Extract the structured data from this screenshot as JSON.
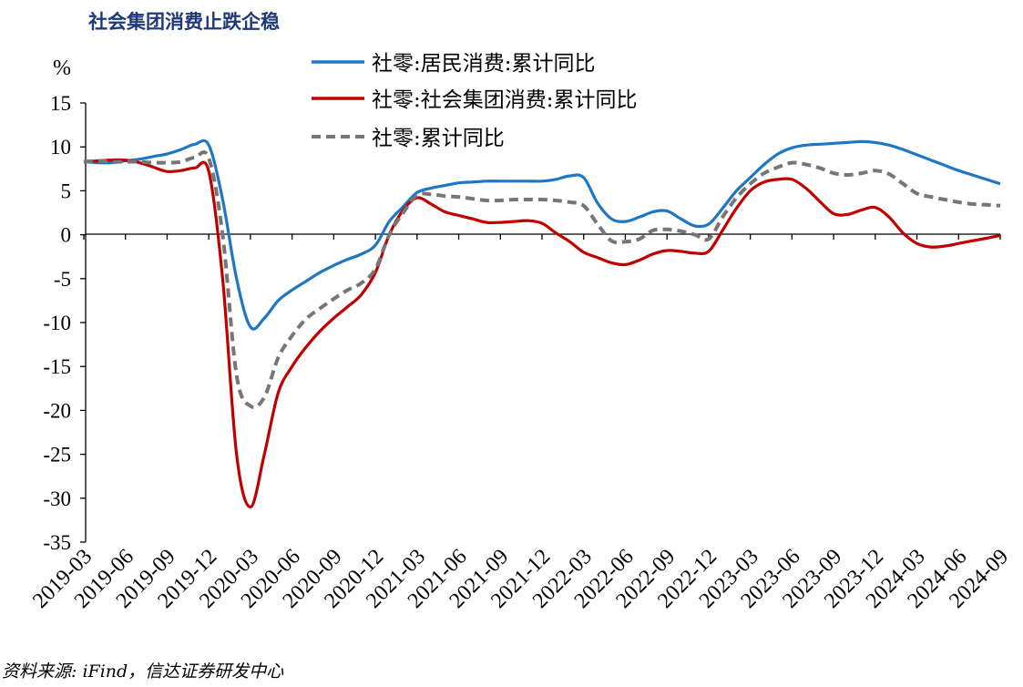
{
  "page": {
    "title": "社会集团消费止跌企稳",
    "source": "资料来源: iFind，信达证券研发中心"
  },
  "chart_data": {
    "type": "line",
    "title": "社会集团消费止跌企稳",
    "ylabel": "%",
    "xlabel": "",
    "ylim": [
      -35,
      15
    ],
    "yticks": [
      15,
      10,
      5,
      0,
      -5,
      -10,
      -15,
      -20,
      -25,
      -30,
      -35
    ],
    "ytick_labels": [
      "15",
      "10",
      "5",
      "0",
      "-5",
      "-10",
      "-15",
      "-20",
      "-25",
      "-30",
      "-35"
    ],
    "x": [
      "2019-03",
      "2019-04",
      "2019-05",
      "2019-06",
      "2019-07",
      "2019-08",
      "2019-09",
      "2019-10",
      "2019-11",
      "2019-12",
      "2020-01",
      "2020-02",
      "2020-03",
      "2020-04",
      "2020-05",
      "2020-06",
      "2020-07",
      "2020-08",
      "2020-09",
      "2020-10",
      "2020-11",
      "2020-12",
      "2021-01",
      "2021-02",
      "2021-03",
      "2021-04",
      "2021-05",
      "2021-06",
      "2021-07",
      "2021-08",
      "2021-09",
      "2021-10",
      "2021-11",
      "2021-12",
      "2022-01",
      "2022-02",
      "2022-03",
      "2022-04",
      "2022-05",
      "2022-06",
      "2022-07",
      "2022-08",
      "2022-09",
      "2022-10",
      "2022-11",
      "2022-12",
      "2023-01",
      "2023-02",
      "2023-03",
      "2023-04",
      "2023-05",
      "2023-06",
      "2023-07",
      "2023-08",
      "2023-09",
      "2023-10",
      "2023-11",
      "2023-12",
      "2024-01",
      "2024-02",
      "2024-03",
      "2024-04",
      "2024-05",
      "2024-06",
      "2024-07",
      "2024-08",
      "2024-09"
    ],
    "xtick_labels": [
      "2019-03",
      "2019-06",
      "2019-09",
      "2019-12",
      "2020-03",
      "2020-06",
      "2020-09",
      "2020-12",
      "2021-03",
      "2021-06",
      "2021-09",
      "2021-12",
      "2022-03",
      "2022-06",
      "2022-09",
      "2022-12",
      "2023-03",
      "2023-06",
      "2023-09",
      "2023-12",
      "2024-03",
      "2024-06",
      "2024-09"
    ],
    "legend_position": "top",
    "grid": false,
    "series": [
      {
        "name": "社零:居民消费:累计同比",
        "color": "#1f77c4",
        "dash": "solid",
        "values": [
          8.3,
          8.2,
          8.2,
          8.4,
          8.6,
          8.9,
          9.2,
          9.7,
          10.3,
          10.2,
          4.0,
          -5.0,
          -10.5,
          -9.5,
          -7.5,
          -6.3,
          -5.3,
          -4.3,
          -3.5,
          -2.8,
          -2.2,
          -1.2,
          1.5,
          3.2,
          4.8,
          5.3,
          5.6,
          5.9,
          6.0,
          6.1,
          6.1,
          6.1,
          6.1,
          6.1,
          6.3,
          6.7,
          6.5,
          3.6,
          1.8,
          1.5,
          2.0,
          2.6,
          2.7,
          1.8,
          1.0,
          1.2,
          3.0,
          5.0,
          6.5,
          8.0,
          9.2,
          9.9,
          10.2,
          10.3,
          10.4,
          10.5,
          10.6,
          10.5,
          10.2,
          9.7,
          9.1,
          8.5,
          7.9,
          7.3,
          6.8,
          6.3,
          5.8
        ]
      },
      {
        "name": "社零:社会集团消费:累计同比",
        "color": "#c00000",
        "dash": "solid",
        "values": [
          8.3,
          8.4,
          8.5,
          8.5,
          8.2,
          7.7,
          7.2,
          7.3,
          7.6,
          7.2,
          -5.0,
          -25.0,
          -31.0,
          -25.0,
          -18.0,
          -15.0,
          -12.8,
          -11.0,
          -9.5,
          -8.2,
          -6.8,
          -4.3,
          0.0,
          2.8,
          4.2,
          3.5,
          2.6,
          2.2,
          1.8,
          1.4,
          1.4,
          1.5,
          1.6,
          1.3,
          0.2,
          -0.8,
          -2.0,
          -2.6,
          -3.2,
          -3.4,
          -2.9,
          -2.2,
          -1.8,
          -1.9,
          -2.1,
          -1.9,
          0.5,
          3.0,
          5.0,
          6.0,
          6.3,
          6.3,
          5.3,
          3.8,
          2.4,
          2.3,
          2.8,
          3.1,
          2.0,
          0.2,
          -1.0,
          -1.4,
          -1.3,
          -1.0,
          -0.7,
          -0.4,
          -0.1
        ]
      },
      {
        "name": "社零:累计同比",
        "color": "#767676",
        "dash": "dashed",
        "values": [
          8.3,
          8.4,
          8.3,
          8.3,
          8.3,
          8.2,
          8.2,
          8.3,
          8.8,
          8.7,
          0.0,
          -16.0,
          -19.5,
          -18.5,
          -14.0,
          -11.5,
          -9.6,
          -8.4,
          -7.3,
          -6.3,
          -5.5,
          -3.9,
          0.0,
          2.5,
          4.5,
          4.6,
          4.4,
          4.3,
          4.1,
          3.9,
          3.9,
          4.0,
          4.0,
          4.0,
          3.9,
          3.7,
          3.3,
          1.2,
          -0.7,
          -0.8,
          -0.5,
          0.5,
          0.6,
          0.4,
          0.0,
          -0.5,
          2.0,
          4.2,
          5.8,
          7.0,
          7.7,
          8.2,
          8.0,
          7.6,
          7.0,
          6.8,
          7.0,
          7.3,
          6.9,
          5.8,
          4.7,
          4.3,
          4.0,
          3.7,
          3.5,
          3.4,
          3.3
        ]
      }
    ]
  }
}
